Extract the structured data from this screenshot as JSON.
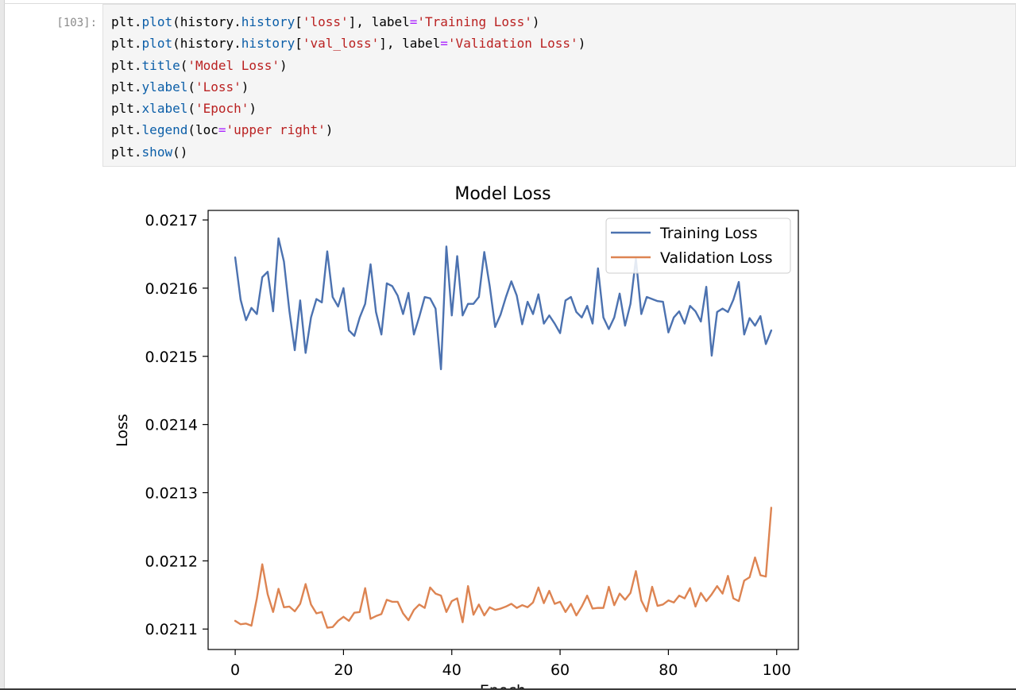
{
  "cell": {
    "prompt": "[103]:",
    "code_lines": [
      [
        [
          "id",
          "plt"
        ],
        [
          "punc",
          "."
        ],
        [
          "attr",
          "plot"
        ],
        [
          "punc",
          "("
        ],
        [
          "id",
          "history"
        ],
        [
          "punc",
          "."
        ],
        [
          "attr",
          "history"
        ],
        [
          "punc",
          "["
        ],
        [
          "str",
          "'loss'"
        ],
        [
          "punc",
          "], "
        ],
        [
          "key",
          "label"
        ],
        [
          "op",
          "="
        ],
        [
          "str",
          "'Training Loss'"
        ],
        [
          "punc",
          ")"
        ]
      ],
      [
        [
          "id",
          "plt"
        ],
        [
          "punc",
          "."
        ],
        [
          "attr",
          "plot"
        ],
        [
          "punc",
          "("
        ],
        [
          "id",
          "history"
        ],
        [
          "punc",
          "."
        ],
        [
          "attr",
          "history"
        ],
        [
          "punc",
          "["
        ],
        [
          "str",
          "'val_loss'"
        ],
        [
          "punc",
          "], "
        ],
        [
          "key",
          "label"
        ],
        [
          "op",
          "="
        ],
        [
          "str",
          "'Validation Loss'"
        ],
        [
          "punc",
          ")"
        ]
      ],
      [
        [
          "id",
          "plt"
        ],
        [
          "punc",
          "."
        ],
        [
          "attr",
          "title"
        ],
        [
          "punc",
          "("
        ],
        [
          "str",
          "'Model Loss'"
        ],
        [
          "punc",
          ")"
        ]
      ],
      [
        [
          "id",
          "plt"
        ],
        [
          "punc",
          "."
        ],
        [
          "attr",
          "ylabel"
        ],
        [
          "punc",
          "("
        ],
        [
          "str",
          "'Loss'"
        ],
        [
          "punc",
          ")"
        ]
      ],
      [
        [
          "id",
          "plt"
        ],
        [
          "punc",
          "."
        ],
        [
          "attr",
          "xlabel"
        ],
        [
          "punc",
          "("
        ],
        [
          "str",
          "'Epoch'"
        ],
        [
          "punc",
          ")"
        ]
      ],
      [
        [
          "id",
          "plt"
        ],
        [
          "punc",
          "."
        ],
        [
          "attr",
          "legend"
        ],
        [
          "punc",
          "("
        ],
        [
          "key",
          "loc"
        ],
        [
          "op",
          "="
        ],
        [
          "str",
          "'upper right'"
        ],
        [
          "punc",
          ")"
        ]
      ],
      [
        [
          "id",
          "plt"
        ],
        [
          "punc",
          "."
        ],
        [
          "attr",
          "show"
        ],
        [
          "punc",
          "()"
        ]
      ]
    ]
  },
  "colors": {
    "training": "#4c72b0",
    "validation": "#dd8452"
  },
  "chart_data": {
    "type": "line",
    "title": "Model Loss",
    "xlabel": "Epoch",
    "ylabel": "Loss",
    "xlim": [
      -5,
      104
    ],
    "ylim": [
      0.02107,
      0.021714
    ],
    "xticks": [
      0,
      20,
      40,
      60,
      80,
      100
    ],
    "yticks": [
      "0.0211",
      "0.0212",
      "0.0213",
      "0.0214",
      "0.0215",
      "0.0216",
      "0.0217"
    ],
    "legend_loc": "upper right",
    "grid": false,
    "series": [
      {
        "name": "Training Loss",
        "color": "#4c72b0",
        "x": [
          0,
          1,
          2,
          3,
          4,
          5,
          6,
          7,
          8,
          9,
          10,
          11,
          12,
          13,
          14,
          15,
          16,
          17,
          18,
          19,
          20,
          21,
          22,
          23,
          24,
          25,
          26,
          27,
          28,
          29,
          30,
          31,
          32,
          33,
          34,
          35,
          36,
          37,
          38,
          39,
          40,
          41,
          42,
          43,
          44,
          45,
          46,
          47,
          48,
          49,
          50,
          51,
          52,
          53,
          54,
          55,
          56,
          57,
          58,
          59,
          60,
          61,
          62,
          63,
          64,
          65,
          66,
          67,
          68,
          69,
          70,
          71,
          72,
          73,
          74,
          75,
          76,
          77,
          78,
          79,
          80,
          81,
          82,
          83,
          84,
          85,
          86,
          87,
          88,
          89,
          90,
          91,
          92,
          93,
          94,
          95,
          96,
          97,
          98,
          99
        ],
        "values": [
          0.021645,
          0.021583,
          0.021553,
          0.021571,
          0.021562,
          0.021616,
          0.021624,
          0.021566,
          0.021673,
          0.021639,
          0.021567,
          0.021509,
          0.021582,
          0.021505,
          0.021557,
          0.021584,
          0.021579,
          0.021654,
          0.021587,
          0.021573,
          0.0216,
          0.021538,
          0.02153,
          0.021557,
          0.021577,
          0.021635,
          0.021565,
          0.021532,
          0.021607,
          0.021603,
          0.021589,
          0.021562,
          0.021593,
          0.021532,
          0.021558,
          0.021587,
          0.021585,
          0.02157,
          0.021481,
          0.021661,
          0.02156,
          0.021647,
          0.02156,
          0.021577,
          0.021577,
          0.021587,
          0.021653,
          0.021603,
          0.021543,
          0.021561,
          0.021587,
          0.02161,
          0.021589,
          0.021547,
          0.02158,
          0.021562,
          0.021591,
          0.021548,
          0.02156,
          0.021548,
          0.021534,
          0.021582,
          0.021587,
          0.021565,
          0.021557,
          0.021574,
          0.021548,
          0.021629,
          0.021557,
          0.02154,
          0.021557,
          0.021592,
          0.021545,
          0.021577,
          0.021643,
          0.021562,
          0.021587,
          0.021584,
          0.021581,
          0.02158,
          0.021535,
          0.021557,
          0.021566,
          0.021548,
          0.021574,
          0.021566,
          0.021551,
          0.021602,
          0.021501,
          0.021565,
          0.02157,
          0.021565,
          0.021583,
          0.021609,
          0.021532,
          0.021556,
          0.021545,
          0.021559,
          0.021518,
          0.021538
        ]
      },
      {
        "name": "Validation Loss",
        "color": "#dd8452",
        "x": [
          0,
          1,
          2,
          3,
          4,
          5,
          6,
          7,
          8,
          9,
          10,
          11,
          12,
          13,
          14,
          15,
          16,
          17,
          18,
          19,
          20,
          21,
          22,
          23,
          24,
          25,
          26,
          27,
          28,
          29,
          30,
          31,
          32,
          33,
          34,
          35,
          36,
          37,
          38,
          39,
          40,
          41,
          42,
          43,
          44,
          45,
          46,
          47,
          48,
          49,
          50,
          51,
          52,
          53,
          54,
          55,
          56,
          57,
          58,
          59,
          60,
          61,
          62,
          63,
          64,
          65,
          66,
          67,
          68,
          69,
          70,
          71,
          72,
          73,
          74,
          75,
          76,
          77,
          78,
          79,
          80,
          81,
          82,
          83,
          84,
          85,
          86,
          87,
          88,
          89,
          90,
          91,
          92,
          93,
          94,
          95,
          96,
          97,
          98,
          99
        ],
        "values": [
          0.021112,
          0.021107,
          0.021108,
          0.021105,
          0.021145,
          0.021195,
          0.021151,
          0.021125,
          0.021159,
          0.021132,
          0.021133,
          0.021126,
          0.021137,
          0.021166,
          0.021136,
          0.021123,
          0.021125,
          0.021102,
          0.021103,
          0.021112,
          0.021118,
          0.021112,
          0.021124,
          0.021125,
          0.02116,
          0.021115,
          0.021119,
          0.021122,
          0.021143,
          0.02114,
          0.02114,
          0.021123,
          0.021113,
          0.021128,
          0.021136,
          0.021131,
          0.021161,
          0.021152,
          0.021149,
          0.021125,
          0.021141,
          0.021145,
          0.02111,
          0.021163,
          0.021121,
          0.021136,
          0.02112,
          0.021132,
          0.021128,
          0.02113,
          0.021133,
          0.021137,
          0.021131,
          0.021135,
          0.021132,
          0.021139,
          0.021161,
          0.021138,
          0.021156,
          0.021137,
          0.02114,
          0.021125,
          0.021137,
          0.02112,
          0.021133,
          0.021149,
          0.02113,
          0.021131,
          0.021131,
          0.021162,
          0.021135,
          0.021152,
          0.021143,
          0.021153,
          0.021185,
          0.021142,
          0.021126,
          0.021162,
          0.021134,
          0.021136,
          0.021142,
          0.021139,
          0.021149,
          0.021145,
          0.02116,
          0.021133,
          0.021153,
          0.021141,
          0.021151,
          0.021163,
          0.021152,
          0.021178,
          0.021145,
          0.021141,
          0.021171,
          0.021176,
          0.021205,
          0.021179,
          0.021177,
          0.021278
        ]
      }
    ]
  }
}
